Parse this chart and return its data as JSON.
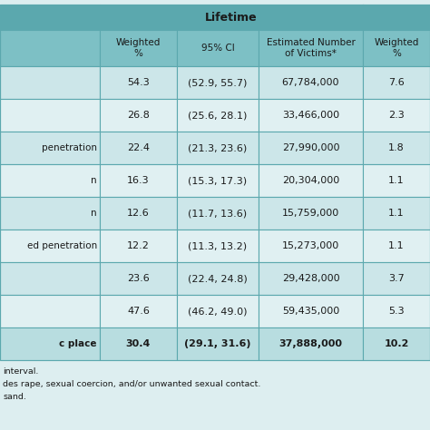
{
  "col_headers": [
    "Weighted\n%",
    "95% CI",
    "Estimated Number\nof Victims*",
    "Weighted\n%"
  ],
  "row_labels": [
    "",
    "",
    "penetration",
    "n",
    "n",
    "ed penetration",
    "",
    "",
    "c place"
  ],
  "row_labels_bold": [
    false,
    false,
    false,
    false,
    false,
    false,
    false,
    false,
    true
  ],
  "col1": [
    "54.3",
    "26.8",
    "22.4",
    "16.3",
    "12.6",
    "12.2",
    "23.6",
    "47.6",
    "30.4"
  ],
  "col2": [
    "(52.9, 55.7)",
    "(25.6, 28.1)",
    "(21.3, 23.6)",
    "(15.3, 17.3)",
    "(11.7, 13.6)",
    "(11.3, 13.2)",
    "(22.4, 24.8)",
    "(46.2, 49.0)",
    "(29.1, 31.6)"
  ],
  "col3": [
    "67,784,000",
    "33,466,000",
    "27,990,000",
    "20,304,000",
    "15,759,000",
    "15,273,000",
    "29,428,000",
    "59,435,000",
    "37,888,000"
  ],
  "col4": [
    "7.6",
    "2.3",
    "1.8",
    "1.1",
    "1.1",
    "1.1",
    "3.7",
    "5.3",
    "10.2"
  ],
  "footnotes": [
    "interval.",
    "des rape, sexual coercion, and/or unwanted sexual contact.",
    "sand."
  ],
  "header_bg": "#5ba8ae",
  "subheader_bg": "#7dc0c5",
  "row_bg_odd": "#cce6e9",
  "row_bg_even": "#e0f0f2",
  "last_row_bg": "#b8dde0",
  "footnote_bg": "#ddeef0",
  "border_color": "#5ba8ae",
  "lifetime_label": "Lifetime"
}
